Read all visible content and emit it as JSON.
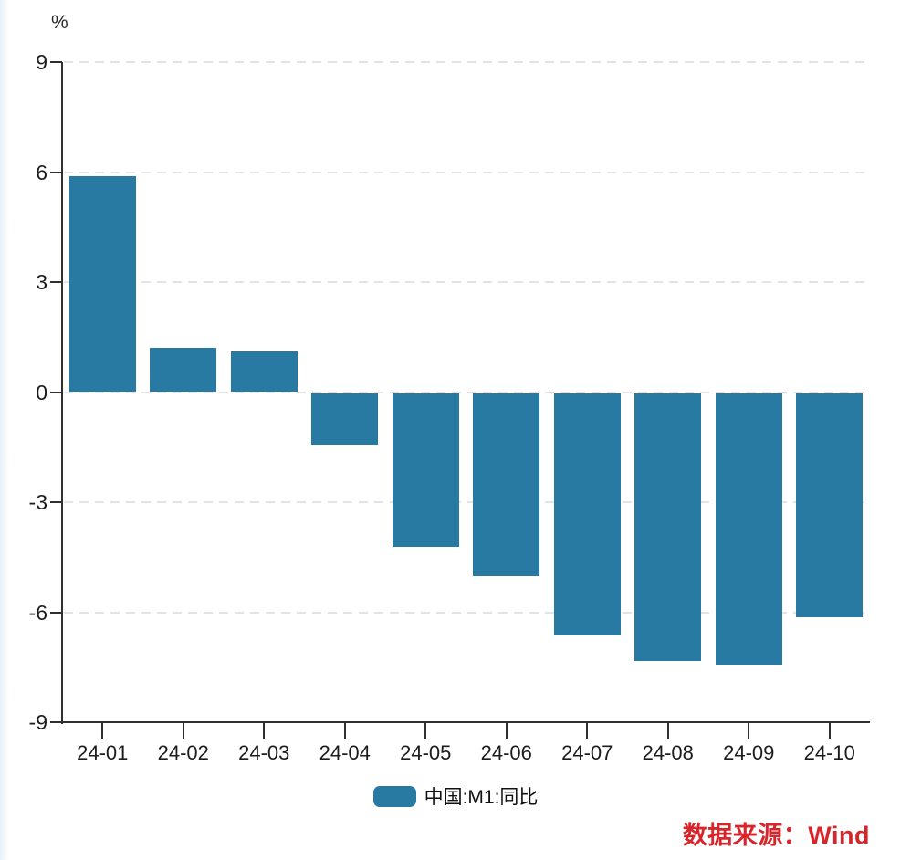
{
  "page": {
    "unit_label": "%",
    "legend": {
      "label": "中国:M1:同比",
      "swatch_color": "#297aa3"
    },
    "source": {
      "text": "数据来源：Wind",
      "color": "#d6252b"
    }
  },
  "chart_data": {
    "type": "bar",
    "title": "",
    "xlabel": "",
    "ylabel": "%",
    "categories": [
      "24-01",
      "24-02",
      "24-03",
      "24-04",
      "24-05",
      "24-06",
      "24-07",
      "24-08",
      "24-09",
      "24-10"
    ],
    "series": [
      {
        "name": "中国:M1:同比",
        "values": [
          5.9,
          1.2,
          1.1,
          -1.4,
          -4.2,
          -5.0,
          -6.6,
          -7.3,
          -7.4,
          -6.1
        ],
        "color": "#297aa3"
      }
    ],
    "ylim": [
      -9,
      9
    ],
    "yticks": [
      9,
      6,
      3,
      0,
      -3,
      -6,
      -9
    ],
    "grid": "horizontal-dashed",
    "gridline_color": "#e3e3e3",
    "axis_color": "#2f2f2f",
    "legend_position": "bottom-center",
    "source_note": "数据来源：Wind"
  }
}
